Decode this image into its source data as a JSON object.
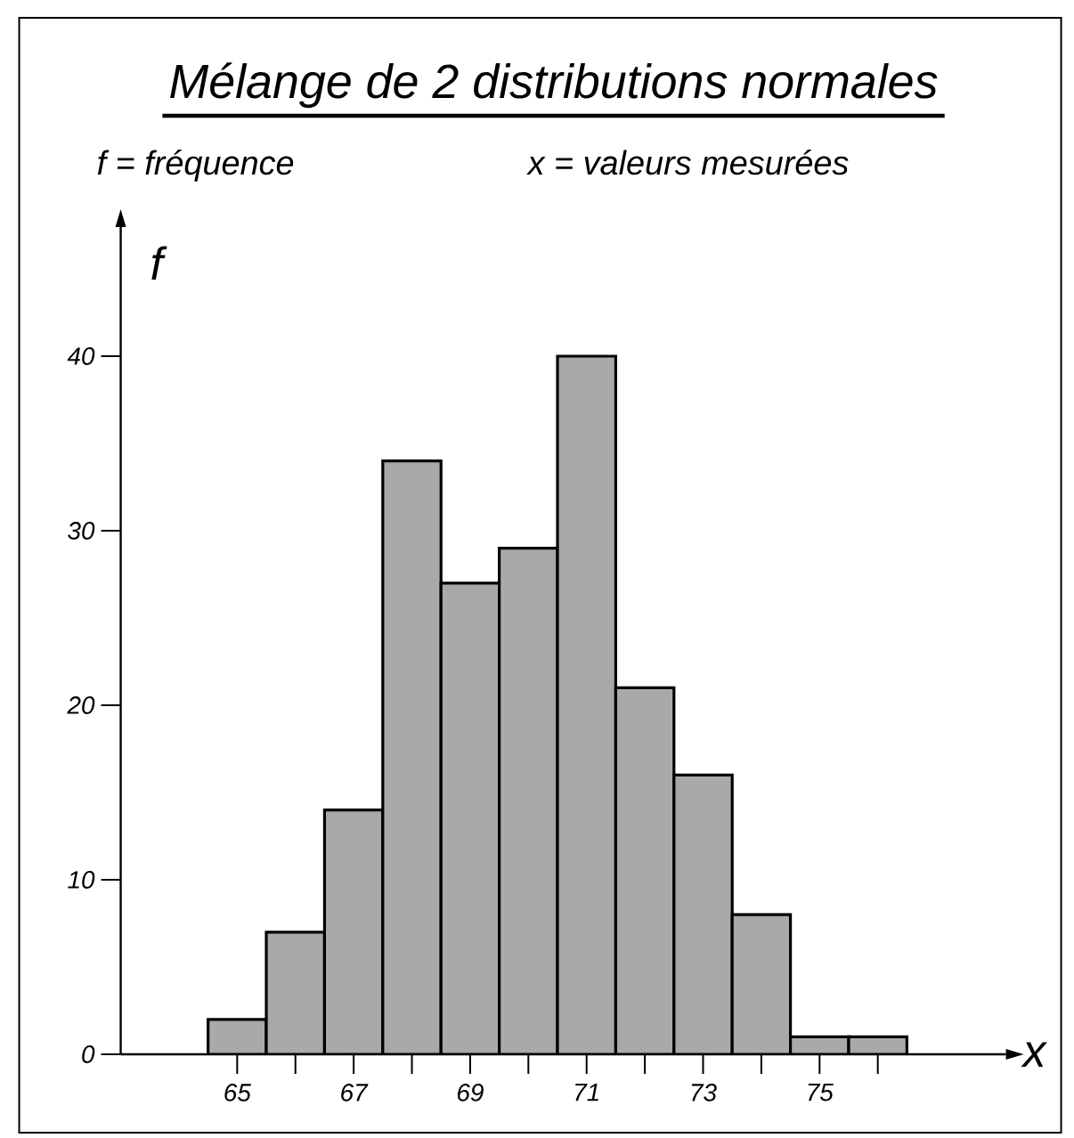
{
  "chart_data": {
    "type": "histogram",
    "title": "Mélange de 2 distributions normales",
    "annotations": [
      "f = fréquence",
      "x = valeurs mesurées"
    ],
    "xlabel": "x",
    "ylabel": "f",
    "bins": [
      64.5,
      65.5,
      66.5,
      67.5,
      68.5,
      69.5,
      70.5,
      71.5,
      72.5,
      73.5,
      74.5,
      75.5,
      76.5
    ],
    "values": [
      2,
      7,
      14,
      34,
      27,
      29,
      40,
      21,
      16,
      8,
      1,
      1
    ],
    "color": "#a9a9a9",
    "xlim": [
      63,
      78.2
    ],
    "ylim": [
      0,
      47.4
    ],
    "xticks": [
      65,
      {
        "value": 66,
        "label": null
      },
      67,
      {
        "value": 68,
        "label": null
      },
      69,
      {
        "value": 70,
        "label": null
      },
      71,
      {
        "value": 72,
        "label": null
      },
      73,
      {
        "value": 74,
        "label": null
      },
      75,
      {
        "value": 76,
        "label": null
      }
    ],
    "yticks": [
      0,
      10,
      20,
      30,
      40
    ],
    "grid": false
  }
}
